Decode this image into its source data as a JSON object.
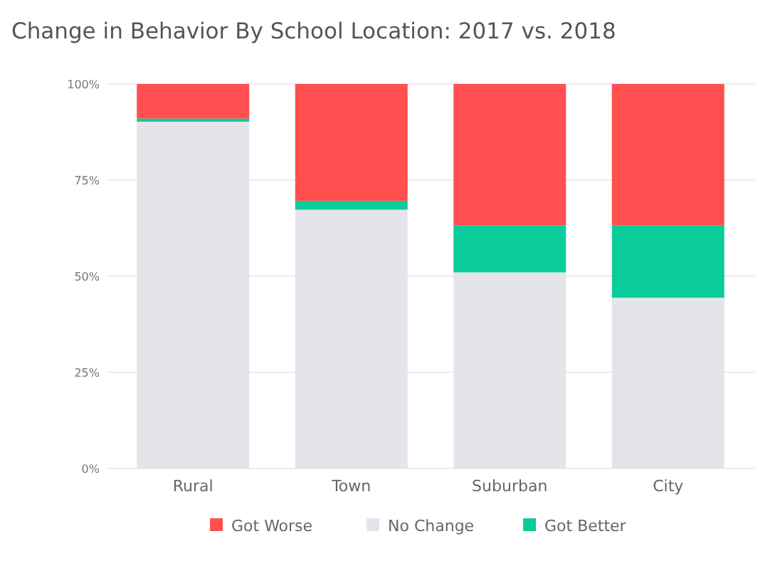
{
  "chart_data": {
    "type": "bar",
    "title": "Change in Behavior By School Location: 2017 vs. 2018",
    "categories": [
      "Rural",
      "Town",
      "Suburban",
      "City"
    ],
    "stacked": true,
    "series": [
      {
        "name": "No Change",
        "color": "#e4e5ea",
        "values": [
          90.2,
          67.3,
          51.0,
          44.4
        ]
      },
      {
        "name": "Got Better",
        "color": "#0acc9b",
        "values": [
          0.8,
          2.3,
          12.2,
          18.8
        ]
      },
      {
        "name": "Got Worse",
        "color": "#ff4f4f",
        "values": [
          9.0,
          30.4,
          36.8,
          36.8
        ]
      }
    ],
    "ylim": [
      0,
      100
    ],
    "yticks": [
      {
        "value": 0,
        "label": "0%"
      },
      {
        "value": 25,
        "label": "25%"
      },
      {
        "value": 50,
        "label": "50%"
      },
      {
        "value": 75,
        "label": "75%"
      },
      {
        "value": 100,
        "label": "100%"
      }
    ],
    "grid": "y",
    "legend": "bottom"
  }
}
